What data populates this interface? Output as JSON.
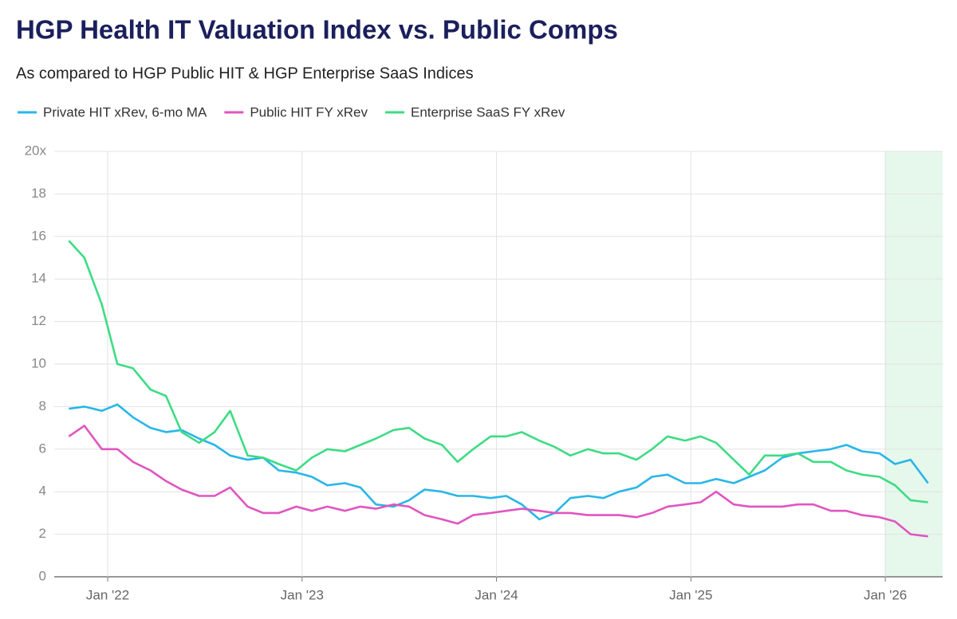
{
  "chart_data": {
    "type": "line",
    "title": "HGP Health IT Valuation Index vs. Public Comps",
    "subtitle": "As compared to HGP Public HIT & HGP Enterprise SaaS Indices",
    "x": [
      2021.8,
      2021.88,
      2021.97,
      2022.05,
      2022.13,
      2022.22,
      2022.3,
      2022.38,
      2022.47,
      2022.55,
      2022.63,
      2022.72,
      2022.8,
      2022.88,
      2022.97,
      2023.05,
      2023.13,
      2023.22,
      2023.3,
      2023.38,
      2023.47,
      2023.55,
      2023.63,
      2023.72,
      2023.8,
      2023.88,
      2023.97,
      2024.05,
      2024.13,
      2024.22,
      2024.3,
      2024.38,
      2024.47,
      2024.55,
      2024.63,
      2024.72,
      2024.8,
      2024.88,
      2024.97,
      2025.05,
      2025.13,
      2025.22,
      2025.3,
      2025.38,
      2025.47,
      2025.55,
      2025.63,
      2025.72,
      2025.8,
      2025.88,
      2025.97,
      2026.05,
      2026.13,
      2026.22
    ],
    "series": [
      {
        "name": "Private HIT xRev, 6-mo MA",
        "color": "#29b6e8",
        "values": [
          7.9,
          8.0,
          7.8,
          8.1,
          7.5,
          7.0,
          6.8,
          6.9,
          6.5,
          6.2,
          5.7,
          5.5,
          5.6,
          5.0,
          4.9,
          4.7,
          4.3,
          4.4,
          4.2,
          3.4,
          3.3,
          3.6,
          4.1,
          4.0,
          3.8,
          3.8,
          3.7,
          3.8,
          3.4,
          2.7,
          3.0,
          3.7,
          3.8,
          3.7,
          4.0,
          4.2,
          4.7,
          4.8,
          4.4,
          4.4,
          4.6,
          4.4,
          4.7,
          5.0,
          5.6,
          5.8,
          5.9,
          6.0,
          6.2,
          5.9,
          5.8,
          5.3,
          5.5,
          4.4
        ]
      },
      {
        "name": "Public HIT FY xRev",
        "color": "#e055c0",
        "values": [
          6.6,
          7.1,
          6.0,
          6.0,
          5.4,
          5.0,
          4.5,
          4.1,
          3.8,
          3.8,
          4.2,
          3.3,
          3.0,
          3.0,
          3.3,
          3.1,
          3.3,
          3.1,
          3.3,
          3.2,
          3.4,
          3.3,
          2.9,
          2.7,
          2.5,
          2.9,
          3.0,
          3.1,
          3.2,
          3.1,
          3.0,
          3.0,
          2.9,
          2.9,
          2.9,
          2.8,
          3.0,
          3.3,
          3.4,
          3.5,
          4.0,
          3.4,
          3.3,
          3.3,
          3.3,
          3.4,
          3.4,
          3.1,
          3.1,
          2.9,
          2.8,
          2.6,
          2.0,
          1.9
        ]
      },
      {
        "name": "Enterprise SaaS FY xRev",
        "color": "#3ddc84",
        "values": [
          15.8,
          15.0,
          12.8,
          10.0,
          9.8,
          8.8,
          8.5,
          6.8,
          6.3,
          6.8,
          7.8,
          5.7,
          5.6,
          5.3,
          5.0,
          5.6,
          6.0,
          5.9,
          6.2,
          6.5,
          6.9,
          7.0,
          6.5,
          6.2,
          5.4,
          6.0,
          6.6,
          6.6,
          6.8,
          6.4,
          6.1,
          5.7,
          6.0,
          5.8,
          5.8,
          5.5,
          6.0,
          6.6,
          6.4,
          6.6,
          6.3,
          5.5,
          4.8,
          5.7,
          5.7,
          5.8,
          5.4,
          5.4,
          5.0,
          4.8,
          4.7,
          4.3,
          3.6,
          3.5
        ]
      }
    ],
    "xlim": [
      2021.725,
      2026.295
    ],
    "xticks": [
      {
        "value": 2022,
        "label": "Jan '22"
      },
      {
        "value": 2023,
        "label": "Jan '23"
      },
      {
        "value": 2024,
        "label": "Jan '24"
      },
      {
        "value": 2025,
        "label": "Jan '25"
      },
      {
        "value": 2026,
        "label": "Jan '26"
      }
    ],
    "ylim": [
      0,
      20
    ],
    "yticks": [
      0,
      2,
      4,
      6,
      8,
      10,
      12,
      14,
      16,
      18,
      {
        "value": 20,
        "label": "20x"
      }
    ],
    "highlight_from": 2026,
    "highlight_color": "#e6f8ec",
    "grid": true
  }
}
